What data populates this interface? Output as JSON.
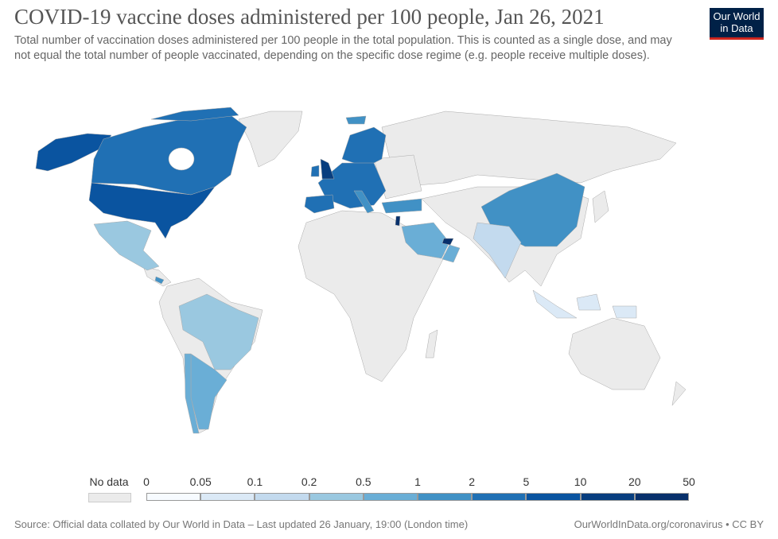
{
  "header": {
    "title": "COVID-19 vaccine doses administered per 100 people, Jan 26, 2021",
    "subtitle": "Total number of vaccination doses administered per 100 people in the total population. This is counted as a single dose, and may not equal the total number of people vaccinated, depending on the specific dose regime (e.g. people receive multiple doses).",
    "logo": "Our World in Data"
  },
  "legend": {
    "no_data_label": "No data",
    "no_data_color": "#ebebeb",
    "ticks": [
      "0",
      "0.05",
      "0.1",
      "0.2",
      "0.5",
      "1",
      "2",
      "5",
      "10",
      "20",
      "50"
    ],
    "colors": [
      "#f7fbff",
      "#dbe9f6",
      "#c3daee",
      "#9ac8e0",
      "#6aaed6",
      "#4191c5",
      "#2070b4",
      "#0a54a0",
      "#083e7f",
      "#08306b"
    ]
  },
  "country_bins": {
    "united-states": "5-10",
    "canada": "2-5",
    "mexico": "0.2-0.5",
    "costa-rica": "1-2",
    "brazil": "0.2-0.5",
    "argentina": "0.5-1",
    "chile": "0.5-1",
    "united-kingdom": "10-20",
    "ireland": "2-5",
    "spain": "2-5",
    "europe-mainland": "2-5",
    "scandinavia": "2-5",
    "iceland": "1-2",
    "italy": "1-2",
    "turkey": "1-2",
    "israel": "20-50",
    "united-arab-emirates": "20-50",
    "saudi-arabia": "0.5-1",
    "oman": "0.5-1",
    "china": "1-2",
    "india": "0.1-0.2",
    "indonesia": "0.05-0.1"
  },
  "footer": {
    "source": "Source: Official data collated by Our World in Data – Last updated 26 January, 19:00 (London time)",
    "credit": "OurWorldInData.org/coronavirus • CC BY"
  }
}
